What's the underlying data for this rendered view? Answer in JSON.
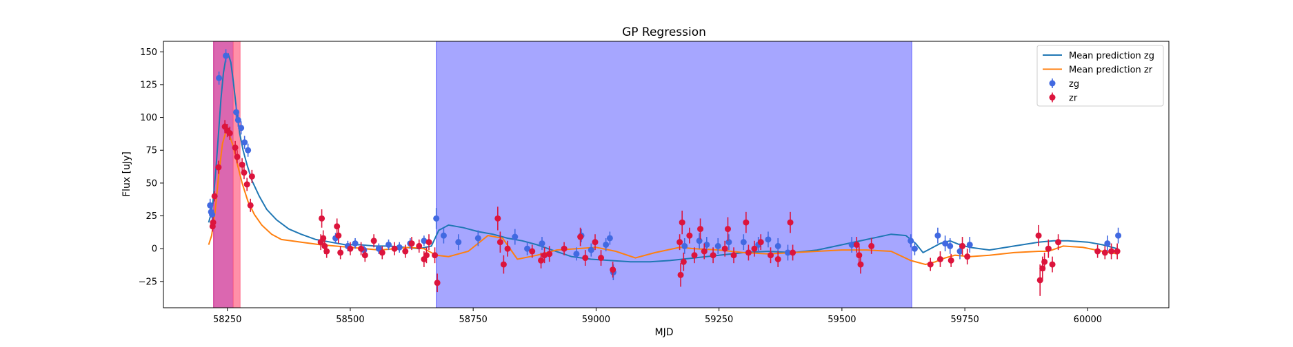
{
  "chart_data": {
    "type": "scatter",
    "title": "GP Regression",
    "xlabel": "MJD",
    "ylabel": "Flux [uJy]",
    "xlim": [
      58120,
      60165
    ],
    "ylim": [
      -45,
      158
    ],
    "x_ticks": [
      58250,
      58500,
      58750,
      59000,
      59250,
      59500,
      59750,
      60000
    ],
    "y_ticks": [
      -25,
      0,
      25,
      50,
      75,
      100,
      125,
      150
    ],
    "grid": false,
    "legend_position": "top-right",
    "shaded_regions": [
      {
        "x0": 58222,
        "x1": 58262,
        "color": "#c71585",
        "opacity": 0.65
      },
      {
        "x0": 58262,
        "x1": 58276,
        "color": "#ff6b8b",
        "opacity": 0.75
      },
      {
        "x0": 58675,
        "x1": 59642,
        "color": "#5555ff",
        "opacity": 0.52
      }
    ],
    "lines": [
      {
        "name": "Mean prediction zg",
        "color": "#1f77b4",
        "x": [
          58212,
          58218,
          58222,
          58227,
          58232,
          58237,
          58242,
          58247,
          58252,
          58257,
          58262,
          58268,
          58275,
          58282,
          58290,
          58300,
          58315,
          58330,
          58350,
          58375,
          58400,
          58430,
          58460,
          58490,
          58520,
          58550,
          58580,
          58610,
          58640,
          58665,
          58680,
          58700,
          58730,
          58760,
          58790,
          58820,
          58850,
          58880,
          58910,
          58950,
          58990,
          59030,
          59070,
          59110,
          59150,
          59200,
          59250,
          59300,
          59350,
          59400,
          59450,
          59500,
          59550,
          59600,
          59630,
          59650,
          59665,
          59680,
          59700,
          59720,
          59740,
          59760,
          59800,
          59850,
          59900,
          59930,
          59960,
          60000,
          60030,
          60060
        ],
        "y": [
          20,
          28,
          40,
          62,
          88,
          114,
          134,
          145,
          148,
          142,
          128,
          108,
          88,
          75,
          64,
          52,
          40,
          30,
          22,
          15,
          11,
          7,
          5,
          3,
          3,
          2,
          2,
          1,
          0,
          2,
          14,
          18,
          16,
          13,
          11,
          8,
          6,
          3,
          -1,
          -6,
          -8,
          -9,
          -10,
          -10,
          -9,
          -7,
          -5,
          -3,
          -2,
          -3,
          -1,
          3,
          7,
          11,
          10,
          4,
          -3,
          0,
          4,
          6,
          3,
          1,
          -1,
          2,
          5,
          6,
          6,
          5,
          3,
          0
        ]
      },
      {
        "name": "Mean prediction zr",
        "color": "#ff7f0e",
        "x": [
          58212,
          58218,
          58225,
          58232,
          58240,
          58247,
          58254,
          58262,
          58270,
          58280,
          58292,
          58305,
          58320,
          58340,
          58360,
          58380,
          58400,
          58420,
          58440,
          58470,
          58500,
          58530,
          58560,
          58590,
          58620,
          58650,
          58675,
          58700,
          58740,
          58780,
          58810,
          58840,
          58880,
          58920,
          58960,
          59000,
          59040,
          59080,
          59120,
          59170,
          59200,
          59250,
          59300,
          59350,
          59400,
          59450,
          59500,
          59550,
          59600,
          59640,
          59670,
          59690,
          59710,
          59730,
          59760,
          59800,
          59850,
          59900,
          59920,
          59950,
          59990,
          60030,
          60060
        ],
        "y": [
          3,
          10,
          28,
          55,
          80,
          89,
          87,
          78,
          65,
          50,
          36,
          26,
          18,
          11,
          7,
          6,
          5,
          4,
          3,
          2,
          1,
          0,
          -1,
          0,
          1,
          0,
          -5,
          -6,
          -2,
          10,
          8,
          -8,
          -5,
          -1,
          0,
          1,
          -2,
          -7,
          -3,
          1,
          0,
          -1,
          -3,
          -4,
          -3,
          -2,
          -1,
          -1,
          -2,
          -9,
          -12,
          -10,
          -7,
          -5,
          -6,
          -5,
          -3,
          -2,
          -2,
          2,
          1,
          -2,
          -4
        ]
      }
    ],
    "series": [
      {
        "name": "zg",
        "color": "#4169e1",
        "points": [
          [
            58215,
            33,
            5
          ],
          [
            58217,
            28,
            4
          ],
          [
            58219,
            26,
            4
          ],
          [
            58233,
            130,
            5
          ],
          [
            58247,
            147,
            5
          ],
          [
            58268,
            104,
            6
          ],
          [
            58272,
            98,
            5
          ],
          [
            58278,
            92,
            5
          ],
          [
            58285,
            81,
            5
          ],
          [
            58292,
            75,
            5
          ],
          [
            58470,
            8,
            4
          ],
          [
            58495,
            2,
            4
          ],
          [
            58510,
            4,
            4
          ],
          [
            58528,
            -1,
            4
          ],
          [
            58558,
            0,
            4
          ],
          [
            58578,
            3,
            4
          ],
          [
            58600,
            1,
            4
          ],
          [
            58622,
            4,
            4
          ],
          [
            58650,
            6,
            4
          ],
          [
            58675,
            23,
            8
          ],
          [
            58690,
            10,
            6
          ],
          [
            58720,
            5,
            6
          ],
          [
            58760,
            8,
            6
          ],
          [
            58835,
            9,
            6
          ],
          [
            58860,
            0,
            5
          ],
          [
            58890,
            4,
            5
          ],
          [
            58960,
            -4,
            5
          ],
          [
            58970,
            10,
            5
          ],
          [
            58990,
            -1,
            5
          ],
          [
            59020,
            3,
            5
          ],
          [
            59028,
            8,
            5
          ],
          [
            59035,
            -18,
            6
          ],
          [
            59180,
            2,
            6
          ],
          [
            59210,
            6,
            6
          ],
          [
            59225,
            3,
            6
          ],
          [
            59248,
            2,
            6
          ],
          [
            59270,
            5,
            6
          ],
          [
            59300,
            5,
            6
          ],
          [
            59330,
            3,
            6
          ],
          [
            59350,
            7,
            6
          ],
          [
            59370,
            2,
            6
          ],
          [
            59390,
            -3,
            6
          ],
          [
            59520,
            3,
            6
          ],
          [
            59640,
            6,
            5
          ],
          [
            59648,
            0,
            5
          ],
          [
            59695,
            10,
            6
          ],
          [
            59710,
            4,
            6
          ],
          [
            59720,
            2,
            6
          ],
          [
            59740,
            -2,
            6
          ],
          [
            59760,
            3,
            6
          ],
          [
            59920,
            0,
            5
          ],
          [
            60040,
            4,
            6
          ],
          [
            60062,
            10,
            6
          ]
        ]
      },
      {
        "name": "zr",
        "color": "#dc143c",
        "points": [
          [
            58220,
            17,
            4
          ],
          [
            58221,
            20,
            4
          ],
          [
            58224,
            40,
            4
          ],
          [
            58232,
            62,
            5
          ],
          [
            58245,
            93,
            5
          ],
          [
            58250,
            90,
            5
          ],
          [
            58255,
            88,
            5
          ],
          [
            58266,
            77,
            5
          ],
          [
            58270,
            70,
            5
          ],
          [
            58280,
            64,
            5
          ],
          [
            58284,
            58,
            5
          ],
          [
            58290,
            49,
            5
          ],
          [
            58297,
            33,
            5
          ],
          [
            58300,
            55,
            5
          ],
          [
            58440,
            5,
            6
          ],
          [
            58442,
            23,
            7
          ],
          [
            58445,
            8,
            6
          ],
          [
            58448,
            2,
            6
          ],
          [
            58452,
            -2,
            5
          ],
          [
            58473,
            17,
            6
          ],
          [
            58476,
            10,
            6
          ],
          [
            58480,
            -3,
            5
          ],
          [
            58500,
            0,
            5
          ],
          [
            58522,
            0,
            5
          ],
          [
            58530,
            -5,
            5
          ],
          [
            58548,
            6,
            5
          ],
          [
            58565,
            -3,
            5
          ],
          [
            58590,
            0,
            5
          ],
          [
            58612,
            -2,
            5
          ],
          [
            58625,
            4,
            5
          ],
          [
            58640,
            2,
            5
          ],
          [
            58650,
            -8,
            6
          ],
          [
            58655,
            -5,
            6
          ],
          [
            58660,
            5,
            6
          ],
          [
            58672,
            -5,
            6
          ],
          [
            58677,
            -26,
            7
          ],
          [
            58800,
            23,
            9
          ],
          [
            58805,
            5,
            8
          ],
          [
            58812,
            -12,
            7
          ],
          [
            58820,
            0,
            6
          ],
          [
            58870,
            -2,
            5
          ],
          [
            58888,
            -9,
            6
          ],
          [
            58895,
            -5,
            6
          ],
          [
            58905,
            -4,
            6
          ],
          [
            58935,
            0,
            5
          ],
          [
            58968,
            9,
            7
          ],
          [
            58978,
            -7,
            6
          ],
          [
            58998,
            5,
            6
          ],
          [
            59010,
            -7,
            6
          ],
          [
            59034,
            -16,
            6
          ],
          [
            59170,
            5,
            6
          ],
          [
            59172,
            -20,
            9
          ],
          [
            59175,
            20,
            9
          ],
          [
            59178,
            -10,
            7
          ],
          [
            59190,
            10,
            6
          ],
          [
            59200,
            -5,
            6
          ],
          [
            59212,
            15,
            8
          ],
          [
            59220,
            -2,
            6
          ],
          [
            59238,
            -5,
            6
          ],
          [
            59262,
            0,
            6
          ],
          [
            59268,
            15,
            9
          ],
          [
            59280,
            -5,
            6
          ],
          [
            59305,
            20,
            8
          ],
          [
            59310,
            -3,
            6
          ],
          [
            59322,
            0,
            6
          ],
          [
            59335,
            5,
            6
          ],
          [
            59355,
            -5,
            6
          ],
          [
            59370,
            -8,
            6
          ],
          [
            59395,
            20,
            8
          ],
          [
            59400,
            -3,
            6
          ],
          [
            59530,
            3,
            6
          ],
          [
            59535,
            -5,
            7
          ],
          [
            59538,
            -12,
            7
          ],
          [
            59560,
            2,
            6
          ],
          [
            59680,
            -12,
            5
          ],
          [
            59700,
            -8,
            6
          ],
          [
            59722,
            -9,
            5
          ],
          [
            59745,
            2,
            7
          ],
          [
            59755,
            -6,
            6
          ],
          [
            59900,
            10,
            8
          ],
          [
            59903,
            -24,
            12
          ],
          [
            59908,
            -15,
            9
          ],
          [
            59912,
            -10,
            7
          ],
          [
            59920,
            0,
            7
          ],
          [
            59928,
            -12,
            6
          ],
          [
            59940,
            5,
            6
          ],
          [
            60020,
            -2,
            5
          ],
          [
            60035,
            -3,
            5
          ],
          [
            60048,
            -2,
            6
          ],
          [
            60060,
            -2,
            6
          ]
        ]
      }
    ]
  }
}
